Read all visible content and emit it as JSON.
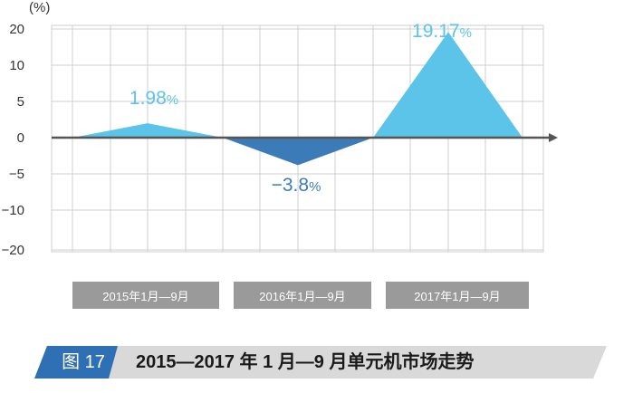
{
  "chart_data": {
    "type": "area",
    "unit_label": "(%)",
    "y_ticks": [
      20,
      10,
      5,
      0,
      -5,
      -10,
      -20
    ],
    "y_tick_labels": [
      "20",
      "10",
      "5",
      "0",
      "−5",
      "−10",
      "−20"
    ],
    "categories": [
      "2015年1月—9月",
      "2016年1月—9月",
      "2017年1月—9月"
    ],
    "values": [
      1.98,
      -3.8,
      19.17
    ],
    "data_labels": [
      {
        "number": "1.98",
        "suffix": "%"
      },
      {
        "number": "−3.8",
        "suffix": "%"
      },
      {
        "number": "19.17",
        "suffix": "%"
      }
    ],
    "grid": true,
    "colors": {
      "positive": "#5bc4e8",
      "negative": "#3b7cb8",
      "label_positive": "#5bc4e8",
      "label_negative": "#3b7cb8",
      "axis": "#555555",
      "grid": "#cfcfcf"
    }
  },
  "caption": {
    "figure_label": "图 17",
    "title": "2015—2017 年 1 月—9 月单元机市场走势",
    "colors": {
      "label_bg": "#2f6fb3",
      "bar_bg": "#d9d9d9"
    }
  }
}
